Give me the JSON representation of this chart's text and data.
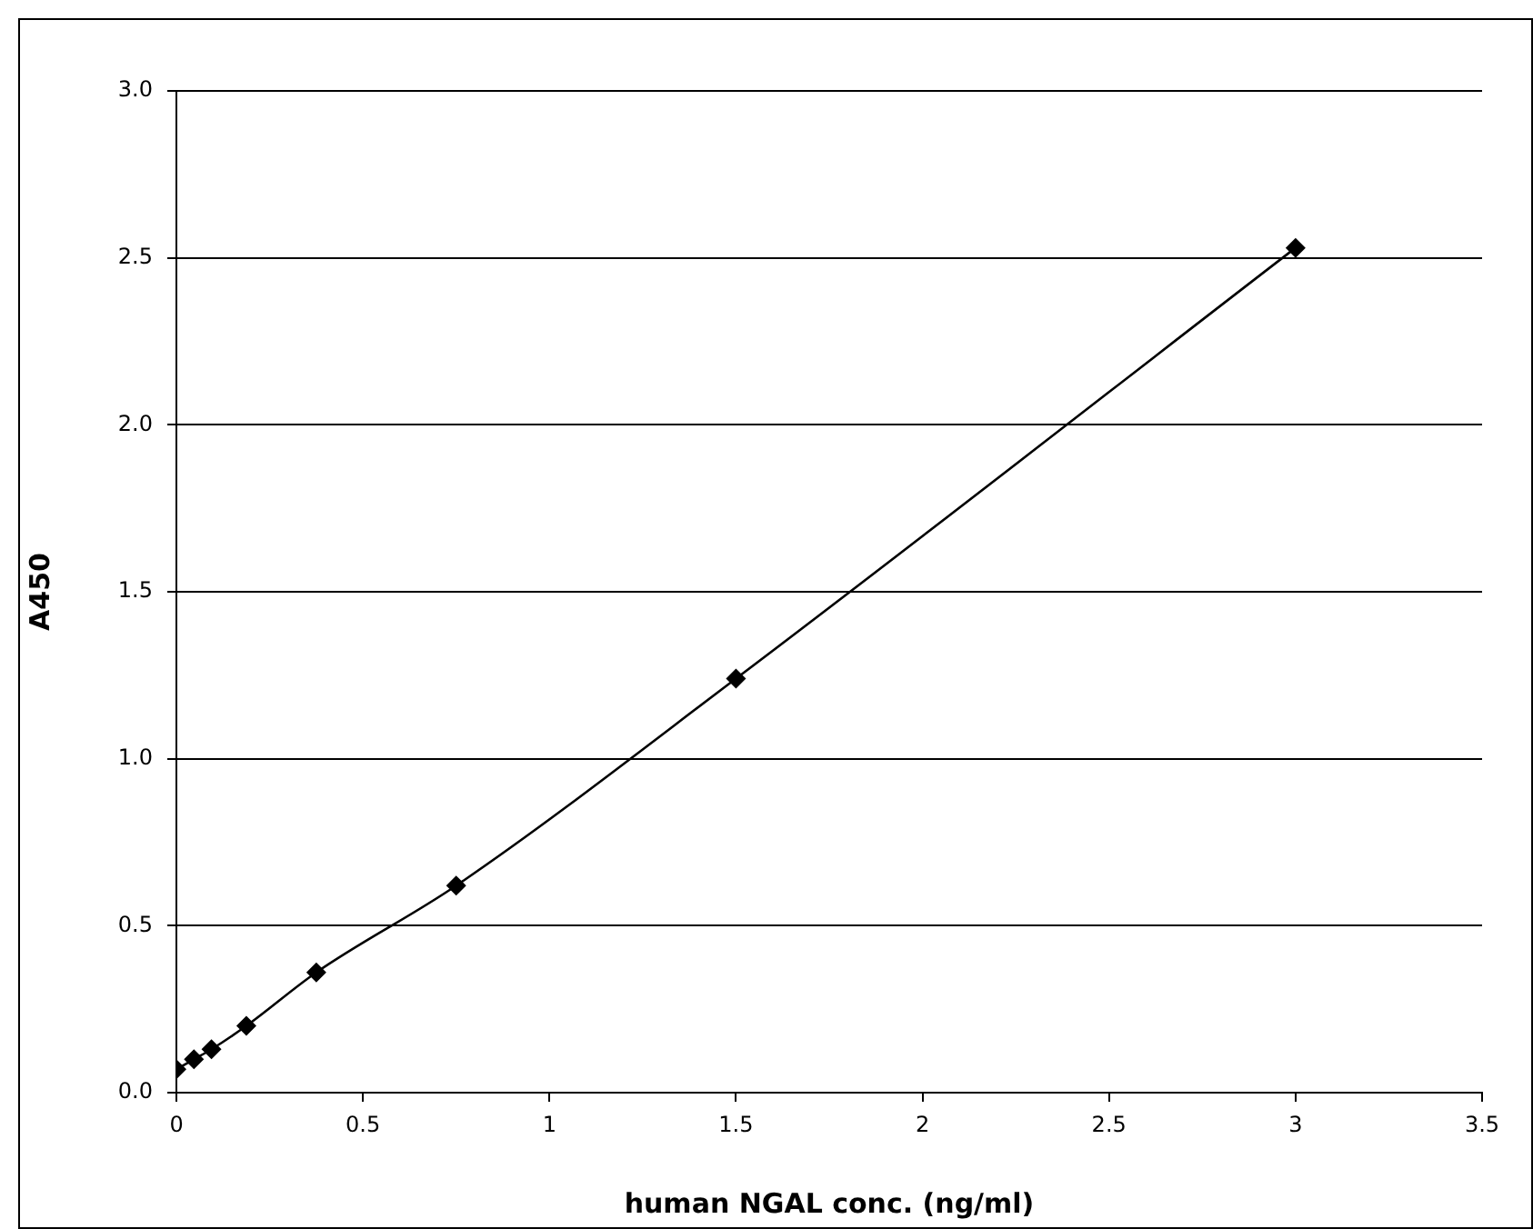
{
  "chart_data": {
    "type": "line",
    "xlabel": "human NGAL conc. (ng/ml)",
    "ylabel": "A450",
    "x": [
      0,
      0.047,
      0.094,
      0.1875,
      0.375,
      0.75,
      1.5,
      3
    ],
    "series": [
      {
        "color": "#000000",
        "values": [
          0.07,
          0.1,
          0.13,
          0.2,
          0.36,
          0.62,
          1.24,
          2.53
        ]
      }
    ],
    "xlim": [
      0,
      3.5
    ],
    "xticks": [
      0,
      0.5,
      1,
      1.5,
      2,
      2.5,
      3,
      3.5
    ],
    "ylim": [
      0,
      3
    ],
    "yticks": [
      {
        "value": 0,
        "label": "0.0"
      },
      0.5,
      {
        "value": 1,
        "label": "1.0"
      },
      1.5,
      {
        "value": 2,
        "label": "2.0"
      },
      2.5,
      {
        "value": 3,
        "label": "3.0"
      }
    ],
    "grid": "y",
    "legend": false,
    "marker": "diamond",
    "line_style": "solid"
  }
}
